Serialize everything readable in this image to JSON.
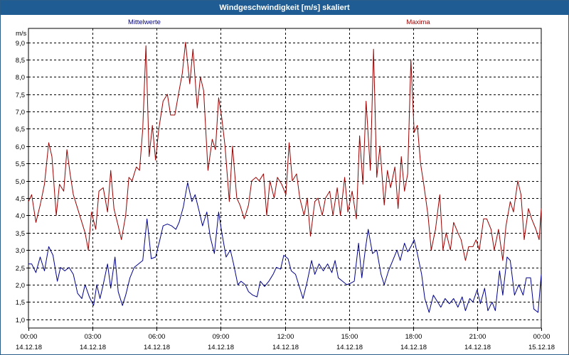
{
  "window": {
    "title": "Windgeschwindigkeit [m/s] skaliert"
  },
  "colors": {
    "title_bar": "#1e5c93",
    "series_mean": "#00008b",
    "series_max": "#9b0000",
    "grid": "#000000"
  },
  "chart_data": {
    "type": "line",
    "title": "Windgeschwindigkeit [m/s] skaliert",
    "ylabel": "m/s",
    "xlabel": "",
    "ylim": [
      0.75,
      9.4
    ],
    "yticks": [
      1.0,
      1.5,
      2.0,
      2.5,
      3.0,
      3.5,
      4.0,
      4.5,
      5.0,
      5.5,
      6.0,
      6.5,
      7.0,
      7.5,
      8.0,
      8.5,
      9.0
    ],
    "ytick_labels": [
      "1,0",
      "1,5",
      "2,0",
      "2,5",
      "3,0",
      "3,5",
      "4,0",
      "4,5",
      "5,0",
      "5,5",
      "6,0",
      "6,5",
      "7,0",
      "7,5",
      "8,0",
      "8,5",
      "9,0"
    ],
    "xlim_hours": [
      0,
      24
    ],
    "xticks": [
      {
        "hour": 0,
        "time": "00:00",
        "date": "14.12.18"
      },
      {
        "hour": 3,
        "time": "03:00",
        "date": "14.12.18"
      },
      {
        "hour": 6,
        "time": "06:00",
        "date": "14.12.18"
      },
      {
        "hour": 9,
        "time": "09:00",
        "date": "14.12.18"
      },
      {
        "hour": 12,
        "time": "12:00",
        "date": "14.12.18"
      },
      {
        "hour": 15,
        "time": "15:00",
        "date": "14.12.18"
      },
      {
        "hour": 18,
        "time": "18:00",
        "date": "14.12.18"
      },
      {
        "hour": 21,
        "time": "21:00",
        "date": "14.12.18"
      },
      {
        "hour": 24,
        "time": "00:00",
        "date": "15.12.18"
      }
    ],
    "grid": true,
    "series": [
      {
        "name": "Mittelwerte",
        "color": "#00008b",
        "points": [
          [
            0.0,
            2.6
          ],
          [
            0.15,
            2.6
          ],
          [
            0.35,
            2.35
          ],
          [
            0.55,
            2.8
          ],
          [
            0.75,
            2.4
          ],
          [
            0.95,
            3.1
          ],
          [
            1.15,
            2.85
          ],
          [
            1.35,
            2.1
          ],
          [
            1.5,
            2.5
          ],
          [
            1.7,
            2.4
          ],
          [
            1.9,
            2.5
          ],
          [
            2.1,
            2.3
          ],
          [
            2.3,
            1.75
          ],
          [
            2.5,
            1.6
          ],
          [
            2.65,
            2.0
          ],
          [
            2.85,
            1.65
          ],
          [
            3.05,
            1.4
          ],
          [
            3.2,
            2.0
          ],
          [
            3.35,
            1.6
          ],
          [
            3.5,
            2.0
          ],
          [
            3.7,
            2.6
          ],
          [
            3.85,
            1.9
          ],
          [
            4.05,
            2.8
          ],
          [
            4.2,
            1.8
          ],
          [
            4.4,
            1.4
          ],
          [
            4.55,
            1.7
          ],
          [
            4.75,
            2.2
          ],
          [
            4.95,
            2.5
          ],
          [
            5.15,
            2.6
          ],
          [
            5.35,
            2.7
          ],
          [
            5.55,
            3.9
          ],
          [
            5.75,
            2.75
          ],
          [
            5.95,
            2.8
          ],
          [
            6.15,
            3.3
          ],
          [
            6.3,
            3.7
          ],
          [
            6.5,
            3.75
          ],
          [
            6.7,
            3.7
          ],
          [
            6.9,
            3.6
          ],
          [
            7.05,
            3.8
          ],
          [
            7.25,
            4.25
          ],
          [
            7.45,
            4.95
          ],
          [
            7.65,
            4.4
          ],
          [
            7.8,
            4.6
          ],
          [
            8.0,
            4.1
          ],
          [
            8.15,
            3.7
          ],
          [
            8.35,
            4.1
          ],
          [
            8.5,
            3.4
          ],
          [
            8.7,
            2.9
          ],
          [
            8.9,
            4.1
          ],
          [
            9.05,
            3.5
          ],
          [
            9.25,
            2.8
          ],
          [
            9.45,
            3.0
          ],
          [
            9.6,
            2.6
          ],
          [
            9.8,
            2.0
          ],
          [
            9.95,
            2.1
          ],
          [
            10.15,
            2.0
          ],
          [
            10.3,
            1.8
          ],
          [
            10.5,
            1.7
          ],
          [
            10.7,
            1.65
          ],
          [
            10.85,
            2.1
          ],
          [
            11.05,
            1.95
          ],
          [
            11.25,
            2.1
          ],
          [
            11.45,
            2.3
          ],
          [
            11.6,
            2.5
          ],
          [
            11.8,
            2.45
          ],
          [
            11.95,
            2.85
          ],
          [
            12.15,
            2.75
          ],
          [
            12.3,
            2.4
          ],
          [
            12.5,
            2.3
          ],
          [
            12.65,
            2.0
          ],
          [
            12.85,
            1.6
          ],
          [
            13.05,
            2.1
          ],
          [
            13.25,
            2.7
          ],
          [
            13.4,
            2.3
          ],
          [
            13.6,
            2.6
          ],
          [
            13.8,
            2.4
          ],
          [
            14.0,
            2.6
          ],
          [
            14.2,
            2.35
          ],
          [
            14.35,
            2.7
          ],
          [
            14.5,
            2.2
          ],
          [
            14.7,
            2.1
          ],
          [
            14.9,
            2.0
          ],
          [
            15.1,
            2.05
          ],
          [
            15.25,
            2.1
          ],
          [
            15.45,
            3.2
          ],
          [
            15.6,
            2.2
          ],
          [
            15.75,
            2.95
          ],
          [
            15.9,
            3.6
          ],
          [
            16.1,
            2.9
          ],
          [
            16.3,
            3.0
          ],
          [
            16.5,
            2.3
          ],
          [
            16.65,
            2.0
          ],
          [
            16.85,
            2.4
          ],
          [
            17.05,
            2.7
          ],
          [
            17.25,
            3.0
          ],
          [
            17.4,
            2.7
          ],
          [
            17.6,
            3.2
          ],
          [
            17.75,
            2.95
          ],
          [
            17.9,
            3.1
          ],
          [
            18.05,
            3.3
          ],
          [
            18.2,
            2.9
          ],
          [
            18.4,
            2.3
          ],
          [
            18.55,
            1.6
          ],
          [
            18.75,
            1.2
          ],
          [
            18.95,
            1.7
          ],
          [
            19.15,
            1.5
          ],
          [
            19.3,
            1.35
          ],
          [
            19.5,
            1.6
          ],
          [
            19.7,
            1.45
          ],
          [
            19.9,
            1.6
          ],
          [
            20.1,
            1.35
          ],
          [
            20.3,
            1.65
          ],
          [
            20.45,
            1.25
          ],
          [
            20.65,
            1.6
          ],
          [
            20.8,
            1.5
          ],
          [
            21.0,
            1.85
          ],
          [
            21.15,
            1.45
          ],
          [
            21.35,
            1.9
          ],
          [
            21.5,
            1.25
          ],
          [
            21.7,
            1.5
          ],
          [
            21.85,
            1.25
          ],
          [
            22.05,
            2.4
          ],
          [
            22.2,
            1.7
          ],
          [
            22.4,
            2.8
          ],
          [
            22.55,
            2.7
          ],
          [
            22.75,
            1.7
          ],
          [
            22.95,
            2.0
          ],
          [
            23.15,
            1.7
          ],
          [
            23.3,
            2.2
          ],
          [
            23.5,
            2.2
          ],
          [
            23.65,
            1.3
          ],
          [
            23.85,
            1.2
          ],
          [
            24.0,
            2.3
          ]
        ]
      },
      {
        "name": "Maxima",
        "color": "#9b0000",
        "points": [
          [
            0.0,
            4.4
          ],
          [
            0.15,
            4.6
          ],
          [
            0.35,
            3.8
          ],
          [
            0.55,
            4.3
          ],
          [
            0.75,
            4.9
          ],
          [
            0.95,
            6.1
          ],
          [
            1.1,
            5.7
          ],
          [
            1.3,
            4.0
          ],
          [
            1.45,
            4.9
          ],
          [
            1.65,
            4.7
          ],
          [
            1.8,
            5.9
          ],
          [
            1.95,
            5.2
          ],
          [
            2.1,
            4.6
          ],
          [
            2.3,
            4.2
          ],
          [
            2.5,
            3.8
          ],
          [
            2.65,
            3.5
          ],
          [
            2.8,
            3.0
          ],
          [
            2.95,
            4.1
          ],
          [
            3.15,
            3.6
          ],
          [
            3.3,
            4.7
          ],
          [
            3.5,
            4.8
          ],
          [
            3.7,
            4.1
          ],
          [
            3.85,
            5.3
          ],
          [
            4.0,
            4.2
          ],
          [
            4.2,
            3.7
          ],
          [
            4.35,
            3.3
          ],
          [
            4.55,
            4.0
          ],
          [
            4.7,
            5.1
          ],
          [
            4.85,
            5.0
          ],
          [
            5.05,
            5.4
          ],
          [
            5.2,
            5.3
          ],
          [
            5.35,
            6.5
          ],
          [
            5.5,
            8.9
          ],
          [
            5.65,
            5.7
          ],
          [
            5.8,
            6.6
          ],
          [
            5.95,
            5.6
          ],
          [
            6.1,
            6.5
          ],
          [
            6.3,
            7.3
          ],
          [
            6.5,
            7.5
          ],
          [
            6.65,
            6.9
          ],
          [
            6.85,
            6.9
          ],
          [
            7.05,
            7.6
          ],
          [
            7.2,
            8.1
          ],
          [
            7.35,
            9.0
          ],
          [
            7.55,
            7.8
          ],
          [
            7.7,
            8.8
          ],
          [
            7.9,
            7.1
          ],
          [
            8.05,
            8.0
          ],
          [
            8.2,
            7.6
          ],
          [
            8.4,
            5.3
          ],
          [
            8.6,
            6.2
          ],
          [
            8.75,
            5.9
          ],
          [
            8.9,
            7.4
          ],
          [
            9.05,
            6.8
          ],
          [
            9.2,
            6.0
          ],
          [
            9.4,
            4.4
          ],
          [
            9.55,
            6.0
          ],
          [
            9.75,
            4.5
          ],
          [
            9.9,
            4.3
          ],
          [
            10.1,
            3.9
          ],
          [
            10.3,
            4.3
          ],
          [
            10.45,
            5.0
          ],
          [
            10.65,
            5.1
          ],
          [
            10.8,
            5.0
          ],
          [
            11.0,
            5.2
          ],
          [
            11.15,
            4.0
          ],
          [
            11.3,
            5.0
          ],
          [
            11.5,
            4.5
          ],
          [
            11.65,
            5.1
          ],
          [
            11.85,
            4.9
          ],
          [
            12.05,
            4.6
          ],
          [
            12.2,
            6.1
          ],
          [
            12.35,
            5.0
          ],
          [
            12.55,
            5.2
          ],
          [
            12.7,
            4.5
          ],
          [
            12.9,
            4.0
          ],
          [
            13.05,
            4.5
          ],
          [
            13.2,
            3.4
          ],
          [
            13.4,
            4.4
          ],
          [
            13.55,
            4.5
          ],
          [
            13.75,
            4.0
          ],
          [
            13.9,
            4.5
          ],
          [
            14.1,
            4.7
          ],
          [
            14.25,
            4.0
          ],
          [
            14.45,
            4.8
          ],
          [
            14.6,
            4.0
          ],
          [
            14.8,
            5.1
          ],
          [
            14.95,
            4.1
          ],
          [
            15.15,
            4.7
          ],
          [
            15.35,
            3.9
          ],
          [
            15.5,
            6.3
          ],
          [
            15.65,
            4.9
          ],
          [
            15.8,
            7.3
          ],
          [
            16.0,
            5.3
          ],
          [
            16.15,
            8.8
          ],
          [
            16.3,
            5.1
          ],
          [
            16.45,
            6.0
          ],
          [
            16.65,
            4.3
          ],
          [
            16.8,
            5.3
          ],
          [
            16.95,
            4.8
          ],
          [
            17.15,
            5.4
          ],
          [
            17.3,
            4.2
          ],
          [
            17.45,
            5.7
          ],
          [
            17.6,
            4.7
          ],
          [
            17.75,
            5.2
          ],
          [
            17.9,
            8.5
          ],
          [
            18.05,
            6.4
          ],
          [
            18.2,
            6.6
          ],
          [
            18.35,
            5.5
          ],
          [
            18.5,
            4.9
          ],
          [
            18.7,
            4.0
          ],
          [
            18.85,
            3.0
          ],
          [
            19.05,
            3.6
          ],
          [
            19.25,
            4.6
          ],
          [
            19.4,
            3.0
          ],
          [
            19.55,
            3.5
          ],
          [
            19.75,
            3.0
          ],
          [
            19.9,
            3.8
          ],
          [
            20.1,
            3.5
          ],
          [
            20.25,
            3.3
          ],
          [
            20.45,
            2.7
          ],
          [
            20.6,
            3.1
          ],
          [
            20.8,
            3.1
          ],
          [
            20.95,
            3.3
          ],
          [
            21.1,
            3.0
          ],
          [
            21.3,
            3.9
          ],
          [
            21.45,
            3.9
          ],
          [
            21.65,
            3.6
          ],
          [
            21.8,
            3.0
          ],
          [
            22.0,
            3.6
          ],
          [
            22.2,
            2.7
          ],
          [
            22.35,
            3.7
          ],
          [
            22.55,
            4.4
          ],
          [
            22.7,
            4.1
          ],
          [
            22.9,
            5.0
          ],
          [
            23.05,
            4.6
          ],
          [
            23.2,
            3.3
          ],
          [
            23.4,
            4.2
          ],
          [
            23.55,
            3.9
          ],
          [
            23.75,
            3.6
          ],
          [
            23.9,
            3.3
          ],
          [
            24.0,
            4.2
          ]
        ]
      }
    ]
  }
}
